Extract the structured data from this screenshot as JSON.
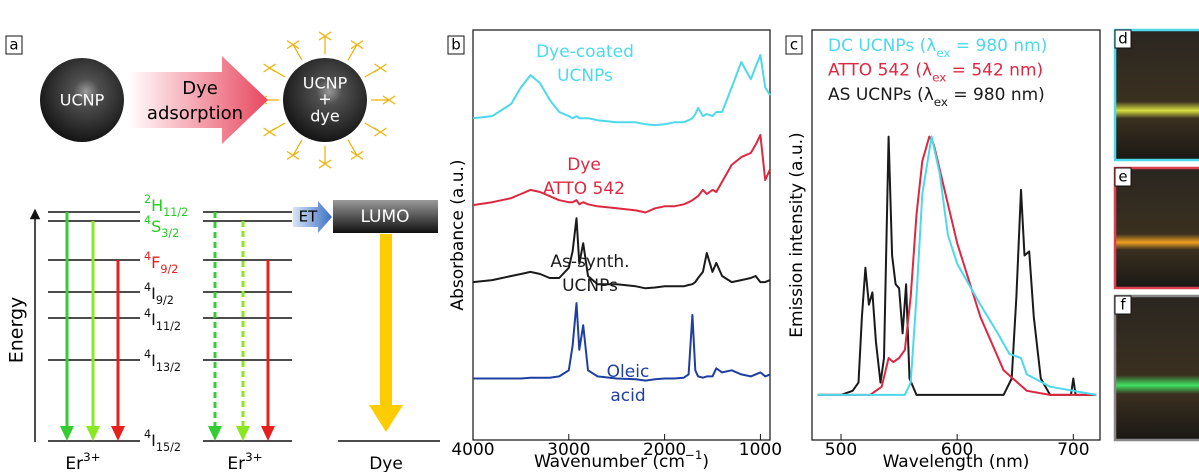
{
  "diagram": {
    "panel": "a",
    "particle_label": "UCNP",
    "arrow_label": [
      "Dye",
      "adsorption"
    ],
    "coated_label": [
      "UCNP",
      "+",
      "dye"
    ],
    "levels": [
      {
        "sup": "2",
        "term": "H",
        "sub": "11/2",
        "color": "#22cc22"
      },
      {
        "sup": "4",
        "term": "S",
        "sub": "3/2",
        "color": "#22cc22"
      },
      {
        "sup": "4",
        "term": "F",
        "sub": "9/2",
        "color": "#e02020"
      },
      {
        "sup": "4",
        "term": "I",
        "sub": "9/2",
        "color": "#111111"
      },
      {
        "sup": "4",
        "term": "I",
        "sub": "11/2",
        "color": "#111111"
      },
      {
        "sup": "4",
        "term": "I",
        "sub": "13/2",
        "color": "#111111"
      },
      {
        "sup": "4",
        "term": "I",
        "sub": "15/2",
        "color": "#111111"
      }
    ],
    "transfer": "ET",
    "acceptor": "LUMO",
    "energy_axis": "Energy",
    "columns": [
      {
        "main": "Er",
        "sup": "3+"
      },
      {
        "main": "Er",
        "sup": "3+"
      },
      {
        "main": "Dye"
      }
    ]
  },
  "chart_data": [
    {
      "type": "line",
      "panel": "b",
      "xlabel": {
        "text": "Wavenumber (cm",
        "sup": "−1",
        "end": ")"
      },
      "ylabel": "Absorbance (a.u.)",
      "xlim": [
        4000,
        900
      ],
      "xticks": [
        4000,
        3000,
        2000,
        1000
      ],
      "ylim": [
        0,
        10
      ],
      "x": [
        4000,
        3800,
        3600,
        3500,
        3400,
        3300,
        3200,
        3100,
        3000,
        2960,
        2920,
        2890,
        2850,
        2800,
        2700,
        2500,
        2300,
        2200,
        2100,
        2000,
        1900,
        1800,
        1750,
        1710,
        1680,
        1650,
        1600,
        1560,
        1500,
        1460,
        1400,
        1300,
        1200,
        1100,
        1050,
        1000,
        950,
        900
      ],
      "series": [
        {
          "label": [
            "Dye-coated",
            "UCNPs"
          ],
          "color": "#4dd8ec",
          "values": [
            7.85,
            7.9,
            8.2,
            8.6,
            8.9,
            8.7,
            8.3,
            8.0,
            7.9,
            7.85,
            7.9,
            7.85,
            7.85,
            7.85,
            7.8,
            7.75,
            7.75,
            7.7,
            7.68,
            7.7,
            7.75,
            7.75,
            7.8,
            7.85,
            7.95,
            8.1,
            7.9,
            7.95,
            7.9,
            8.0,
            8.0,
            8.6,
            9.22,
            8.8,
            9.1,
            9.39,
            8.6,
            8.41
          ]
        },
        {
          "label": [
            "Dye",
            "ATTO 542"
          ],
          "color": "#dc2840",
          "values": [
            5.73,
            5.8,
            5.9,
            6.0,
            6.1,
            6.05,
            5.95,
            5.85,
            5.8,
            5.8,
            5.85,
            5.75,
            5.8,
            5.75,
            5.7,
            5.65,
            5.6,
            5.55,
            5.65,
            5.7,
            5.7,
            5.75,
            5.8,
            5.85,
            5.9,
            5.95,
            6.1,
            6.0,
            6.1,
            6.05,
            6.3,
            6.71,
            6.9,
            7.0,
            7.2,
            7.44,
            6.34,
            6.6
          ]
        },
        {
          "label": [
            "As-synth.",
            "UCNPs"
          ],
          "color": "#1a1a1a",
          "values": [
            3.85,
            3.9,
            4.0,
            4.05,
            4.1,
            4.05,
            3.95,
            3.95,
            4.2,
            4.6,
            5.41,
            4.3,
            4.8,
            4.0,
            3.8,
            3.8,
            3.75,
            3.7,
            3.72,
            3.75,
            3.75,
            3.75,
            3.78,
            3.8,
            3.85,
            3.95,
            4.1,
            4.56,
            4.1,
            4.32,
            4.0,
            3.85,
            3.9,
            3.95,
            4.0,
            3.85,
            3.85,
            3.9
          ]
        },
        {
          "label": [
            "Oleic",
            "acid"
          ],
          "color": "#1f3fa0",
          "values": [
            1.5,
            1.5,
            1.5,
            1.5,
            1.52,
            1.52,
            1.52,
            1.55,
            1.7,
            2.3,
            3.34,
            2.2,
            2.8,
            1.7,
            1.55,
            1.5,
            1.48,
            1.45,
            1.48,
            1.5,
            1.5,
            1.52,
            1.6,
            3.05,
            1.7,
            1.55,
            1.52,
            1.55,
            1.55,
            1.75,
            1.65,
            1.7,
            1.6,
            1.55,
            1.6,
            1.65,
            1.55,
            1.6
          ]
        }
      ]
    },
    {
      "type": "line",
      "panel": "c",
      "xlabel": {
        "text": "Wavelength (nm)"
      },
      "ylabel": "Emission intensity (a.u.)",
      "xlim": [
        475,
        723
      ],
      "xticks": [
        500,
        600,
        700
      ],
      "ylim": [
        0,
        1
      ],
      "legend": "upper left",
      "series": [
        {
          "name": {
            "main": "DC UCNPs (λ",
            "sub": "ex",
            "rest": " = 980 nm)"
          },
          "color": "#4dd8ec",
          "x": [
            480,
            500,
            520,
            540,
            555,
            560,
            565,
            570,
            578,
            585,
            592,
            600,
            610,
            620,
            635,
            645,
            655,
            660,
            680,
            700,
            720
          ],
          "values": [
            0.11,
            0.11,
            0.11,
            0.11,
            0.11,
            0.14,
            0.35,
            0.6,
            0.74,
            0.65,
            0.5,
            0.43,
            0.38,
            0.33,
            0.26,
            0.21,
            0.2,
            0.16,
            0.13,
            0.12,
            0.11
          ]
        },
        {
          "name": {
            "main": "ATTO 542 (λ",
            "sub": "ex",
            "rest": " = 542 nm)"
          },
          "color": "#dc2840",
          "x": [
            480,
            500,
            525,
            535,
            541,
            545,
            550,
            555,
            560,
            565,
            570,
            576,
            580,
            590,
            600,
            620,
            640,
            660,
            680,
            720
          ],
          "values": [
            0.11,
            0.11,
            0.11,
            0.13,
            0.2,
            0.19,
            0.2,
            0.22,
            0.35,
            0.55,
            0.68,
            0.74,
            0.72,
            0.6,
            0.48,
            0.3,
            0.17,
            0.12,
            0.11,
            0.11
          ]
        },
        {
          "name": {
            "main": "AS UCNPs (λ",
            "sub": "ex",
            "rest": " = 980 nm)"
          },
          "color": "#1a1a1a",
          "x": [
            480,
            500,
            510,
            515,
            518,
            521,
            524,
            527,
            530,
            534,
            537,
            541,
            544,
            547,
            550,
            553,
            556,
            559,
            565,
            580,
            600,
            620,
            640,
            647,
            651,
            655,
            658,
            662,
            666,
            672,
            680,
            698,
            700,
            702,
            720
          ],
          "values": [
            0.11,
            0.11,
            0.12,
            0.14,
            0.3,
            0.42,
            0.33,
            0.36,
            0.24,
            0.14,
            0.2,
            0.74,
            0.45,
            0.38,
            0.37,
            0.26,
            0.38,
            0.15,
            0.11,
            0.11,
            0.11,
            0.11,
            0.11,
            0.15,
            0.35,
            0.61,
            0.45,
            0.46,
            0.3,
            0.15,
            0.11,
            0.11,
            0.15,
            0.11,
            0.11
          ]
        }
      ]
    }
  ],
  "photos": [
    {
      "panel": "d",
      "border": "#4dd8ec",
      "glow": "#d8e040"
    },
    {
      "panel": "e",
      "border": "#dc4050",
      "glow": "#f0a020"
    },
    {
      "panel": "f",
      "border": "#888888",
      "glow": "#40e060"
    }
  ]
}
